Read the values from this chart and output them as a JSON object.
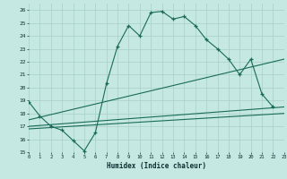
{
  "xlabel": "Humidex (Indice chaleur)",
  "bg_color": "#c5e8e2",
  "grid_color": "#a8d0c8",
  "line_color": "#1a6b58",
  "xlim": [
    0,
    23
  ],
  "ylim": [
    15,
    26.5
  ],
  "yticks": [
    15,
    16,
    17,
    18,
    19,
    20,
    21,
    22,
    23,
    24,
    25,
    26
  ],
  "xticks": [
    0,
    1,
    2,
    3,
    4,
    5,
    6,
    7,
    8,
    9,
    10,
    11,
    12,
    13,
    14,
    15,
    16,
    17,
    18,
    19,
    20,
    21,
    22,
    23
  ],
  "main_x": [
    0,
    1,
    2,
    3,
    4,
    5,
    6,
    7,
    8,
    9,
    10,
    11,
    12,
    13,
    14,
    15,
    16,
    17,
    18,
    19,
    20,
    21,
    22
  ],
  "main_y": [
    18.9,
    17.8,
    17.0,
    16.7,
    15.9,
    15.1,
    16.5,
    20.3,
    23.2,
    24.8,
    24.0,
    25.8,
    25.9,
    25.3,
    25.5,
    24.8,
    23.7,
    23.0,
    22.2,
    21.0,
    22.2,
    19.5,
    18.5
  ],
  "tline1_x": [
    0,
    23
  ],
  "tline1_y": [
    17.5,
    22.2
  ],
  "tline2_x": [
    0,
    23
  ],
  "tline2_y": [
    17.0,
    18.5
  ],
  "tline3_x": [
    0,
    23
  ],
  "tline3_y": [
    16.8,
    18.0
  ]
}
